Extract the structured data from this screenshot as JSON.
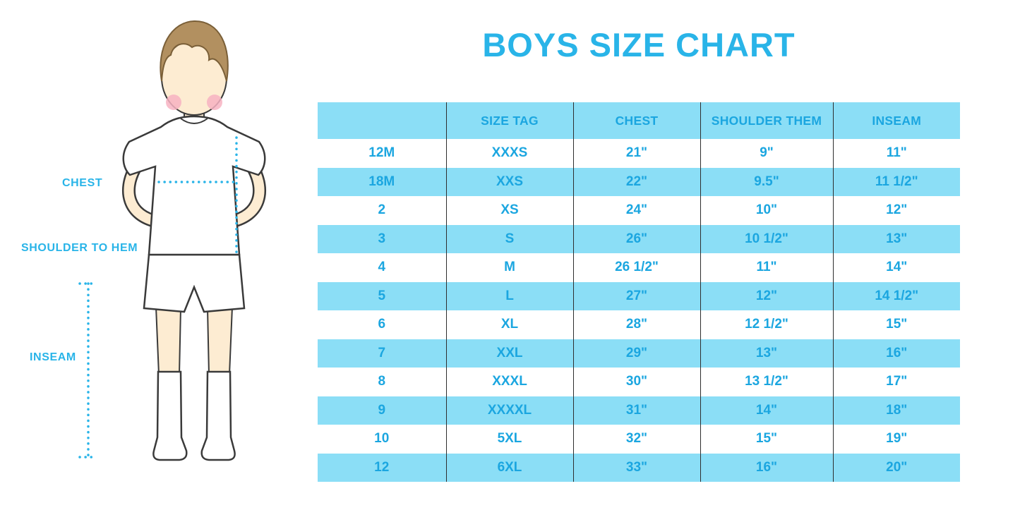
{
  "title": "BOYS SIZE CHART",
  "figure_labels": {
    "chest": "CHEST",
    "shoulder_to_hem": "SHOULDER TO HEM",
    "inseam": "INSEAM"
  },
  "colors": {
    "accent_cyan": "#29b4e8",
    "table_row_blue": "#8bdef6",
    "table_text_cyan": "#1ba6e0",
    "row_white": "#ffffff",
    "outline_dark": "#3a3a3a",
    "hair_brown": "#b29060",
    "skin": "#fdecd2",
    "cheek_pink": "#f7b3c2"
  },
  "chart_data": {
    "type": "table",
    "title": "BOYS SIZE CHART",
    "columns": [
      "",
      "SIZE TAG",
      "CHEST",
      "SHOULDER THEM",
      "INSEAM"
    ],
    "rows": [
      [
        "12M",
        "XXXS",
        "21\"",
        "9\"",
        "11\""
      ],
      [
        "18M",
        "XXS",
        "22\"",
        "9.5\"",
        "11 1/2\""
      ],
      [
        "2",
        "XS",
        "24\"",
        "10\"",
        "12\""
      ],
      [
        "3",
        "S",
        "26\"",
        "10 1/2\"",
        "13\""
      ],
      [
        "4",
        "M",
        "26 1/2\"",
        "11\"",
        "14\""
      ],
      [
        "5",
        "L",
        "27\"",
        "12\"",
        "14 1/2\""
      ],
      [
        "6",
        "XL",
        "28\"",
        "12 1/2\"",
        "15\""
      ],
      [
        "7",
        "XXL",
        "29\"",
        "13\"",
        "16\""
      ],
      [
        "8",
        "XXXL",
        "30\"",
        "13 1/2\"",
        "17\""
      ],
      [
        "9",
        "XXXXL",
        "31\"",
        "14\"",
        "18\""
      ],
      [
        "10",
        "5XL",
        "32\"",
        "15\"",
        "19\""
      ],
      [
        "12",
        "6XL",
        "33\"",
        "16\"",
        "20\""
      ]
    ]
  }
}
